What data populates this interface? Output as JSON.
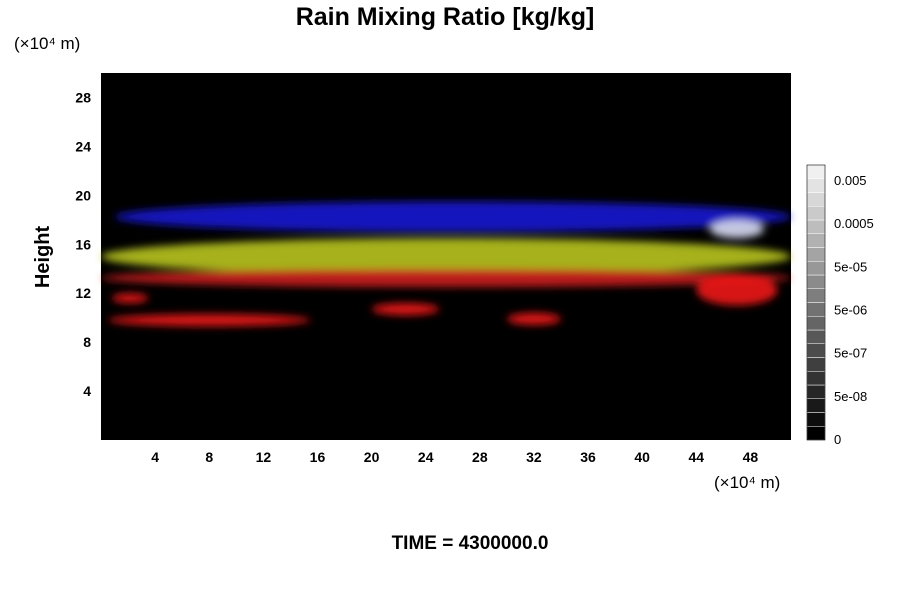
{
  "chart_data": {
    "type": "heatmap",
    "title": "Rain Mixing Ratio [kg/kg]",
    "xlabel": "",
    "ylabel": "Height",
    "x_unit": "(×10⁴ m)",
    "y_unit": "(×10⁴ m)",
    "xlim": [
      0,
      51
    ],
    "ylim": [
      0,
      30
    ],
    "xticks": [
      4,
      8,
      12,
      16,
      20,
      24,
      28,
      32,
      36,
      40,
      44,
      48
    ],
    "yticks": [
      4,
      8,
      12,
      16,
      20,
      24,
      28
    ],
    "background_color": "#000000",
    "footer": "TIME = 4300000.0",
    "colorbar": {
      "labels": [
        "0",
        "5e-08",
        "5e-07",
        "5e-06",
        "5e-05",
        "0.0005",
        "0.005"
      ],
      "levels": 20,
      "color_low": "#000000",
      "color_high": "#f0f0f0"
    },
    "features": [
      {
        "color": "#1a1ad2",
        "x0": 1,
        "x1": 51,
        "y0": 17.0,
        "y1": 19.5
      },
      {
        "color": "#b8c420",
        "x0": 0,
        "x1": 51,
        "y0": 13.5,
        "y1": 16.5
      },
      {
        "color": "#cc2020",
        "x0": 0,
        "x1": 51,
        "y0": 12.5,
        "y1": 14.0
      },
      {
        "color": "#ee1a1a",
        "x0": 0.5,
        "x1": 15.5,
        "y0": 9.3,
        "y1": 10.3
      },
      {
        "color": "#ee1a1a",
        "x0": 0.8,
        "x1": 3.5,
        "y0": 11.2,
        "y1": 12.0
      },
      {
        "color": "#ee1a1a",
        "x0": 20,
        "x1": 25,
        "y0": 10.2,
        "y1": 11.2
      },
      {
        "color": "#ee1a1a",
        "x0": 30,
        "x1": 34,
        "y0": 9.4,
        "y1": 10.4
      },
      {
        "color": "#ee1a1a",
        "x0": 44,
        "x1": 50,
        "y0": 11.0,
        "y1": 13.5
      },
      {
        "color": "#d8dcf4",
        "x0": 45,
        "x1": 49,
        "y0": 16.5,
        "y1": 18.0
      }
    ]
  }
}
